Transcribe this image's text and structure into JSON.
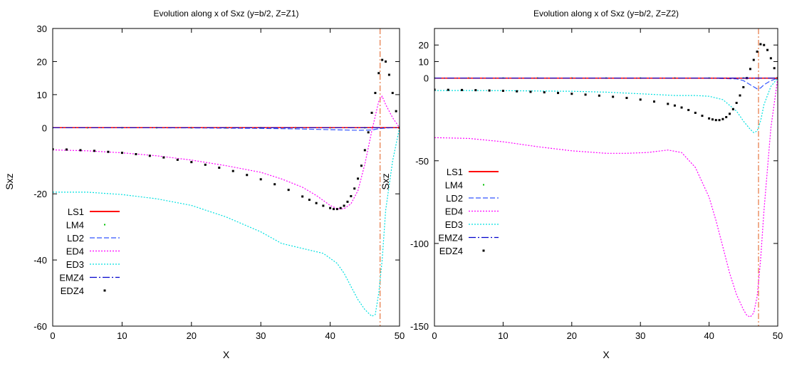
{
  "chart_data": [
    {
      "type": "line",
      "title": "Evolution along x of Sxz (y=b/2, Z=Z1)",
      "xlabel": "X",
      "ylabel": "Sxz",
      "xlim": [
        0,
        50
      ],
      "ylim": [
        -60,
        30
      ],
      "xticks": [
        0,
        10,
        20,
        30,
        40,
        50
      ],
      "yticks": [
        -60,
        -40,
        -20,
        0,
        10,
        20,
        30
      ],
      "vline_x": 47.2,
      "legend_position": "bottom-left",
      "series": [
        {
          "name": "LS1",
          "color": "#ff0000",
          "style": "solid",
          "x": [
            0,
            50
          ],
          "y": [
            0,
            0
          ]
        },
        {
          "name": "LM4",
          "color": "#00c000",
          "style": "dots",
          "x": [
            0,
            5,
            10,
            15,
            20,
            25,
            30,
            35,
            40,
            45,
            50
          ],
          "y": [
            0,
            0,
            0,
            0,
            0,
            0,
            0,
            0,
            0,
            0,
            0
          ]
        },
        {
          "name": "LD2",
          "color": "#3355ff",
          "style": "dashed",
          "x": [
            0,
            10,
            20,
            30,
            35,
            40,
            44,
            46,
            47,
            48,
            49,
            50
          ],
          "y": [
            0,
            0,
            -0.05,
            -0.2,
            -0.35,
            -0.6,
            -0.8,
            -0.7,
            -0.3,
            -0.1,
            0,
            0
          ]
        },
        {
          "name": "ED4",
          "color": "#ff00ff",
          "style": "dotted",
          "x": [
            0,
            5,
            10,
            15,
            20,
            25,
            30,
            33,
            36,
            38,
            40,
            41,
            42,
            43,
            44,
            45,
            46,
            47,
            47.5,
            48,
            49,
            50
          ],
          "y": [
            -6.7,
            -7,
            -7.6,
            -8.5,
            -9.8,
            -11.5,
            -13.5,
            -15.5,
            -18,
            -20.5,
            -23.5,
            -24.5,
            -24.5,
            -23,
            -19,
            -11,
            -1,
            8,
            9.5,
            7,
            3,
            0
          ]
        },
        {
          "name": "ED3",
          "color": "#00e0e0",
          "style": "dotted",
          "x": [
            0,
            5,
            10,
            15,
            20,
            25,
            30,
            33,
            36,
            39,
            41,
            42,
            43,
            44,
            45,
            46,
            46.5,
            47,
            47.5,
            48,
            49,
            50
          ],
          "y": [
            -19.5,
            -19.5,
            -20.2,
            -21.5,
            -23.5,
            -27,
            -31.5,
            -35,
            -36.5,
            -38,
            -41,
            -44,
            -48,
            -52,
            -55,
            -57,
            -56.5,
            -50,
            -40,
            -25,
            -10,
            0
          ]
        },
        {
          "name": "EMZ4",
          "color": "#0000cc",
          "style": "dash-dot",
          "x": [
            0,
            50
          ],
          "y": [
            0,
            0
          ]
        },
        {
          "name": "EDZ4",
          "color": "#000000",
          "style": "markers",
          "x": [
            0,
            2,
            4,
            6,
            8,
            10,
            12,
            14,
            16,
            18,
            20,
            22,
            24,
            26,
            28,
            30,
            32,
            34,
            36,
            37,
            38,
            39,
            40,
            40.5,
            41,
            41.5,
            42,
            42.5,
            43,
            43.5,
            44,
            44.5,
            45,
            45.5,
            46,
            46.5,
            47,
            47.5,
            48,
            48.5,
            49,
            49.5,
            50
          ],
          "y": [
            -6.5,
            -6.6,
            -6.8,
            -7,
            -7.3,
            -7.6,
            -8,
            -8.5,
            -9,
            -9.7,
            -10.4,
            -11.2,
            -12.1,
            -13.1,
            -14.3,
            -15.6,
            -17.1,
            -18.8,
            -20.8,
            -21.8,
            -22.8,
            -23.6,
            -24.3,
            -24.6,
            -24.6,
            -24.3,
            -23.6,
            -22.4,
            -20.7,
            -18.4,
            -15.4,
            -11.5,
            -6.8,
            -1.4,
            4.5,
            10.5,
            16.5,
            20.5,
            20,
            16,
            10.5,
            5,
            0
          ]
        }
      ]
    },
    {
      "type": "line",
      "title": "Evolution along x of Sxz (y=b/2, Z=Z2)",
      "xlabel": "X",
      "ylabel": "Sxz",
      "xlim": [
        0,
        50
      ],
      "ylim": [
        -150,
        30
      ],
      "xticks": [
        0,
        10,
        20,
        30,
        40,
        50
      ],
      "yticks": [
        -150,
        -100,
        -50,
        0,
        10,
        20
      ],
      "vline_x": 47.2,
      "legend_position": "middle-left",
      "series": [
        {
          "name": "LS1",
          "color": "#ff0000",
          "style": "solid",
          "x": [
            0,
            50
          ],
          "y": [
            0,
            0
          ]
        },
        {
          "name": "LM4",
          "color": "#00c000",
          "style": "dots",
          "x": [
            0,
            5,
            10,
            15,
            20,
            25,
            30,
            35,
            40,
            45,
            50
          ],
          "y": [
            0,
            0,
            0,
            0,
            0,
            0,
            0,
            0,
            0,
            0,
            0
          ]
        },
        {
          "name": "LD2",
          "color": "#3355ff",
          "style": "dashed",
          "x": [
            0,
            10,
            20,
            30,
            40,
            44,
            45,
            46,
            47,
            47.5,
            48,
            49,
            50
          ],
          "y": [
            0,
            0,
            0,
            0,
            0,
            -0.5,
            -1.5,
            -4,
            -6.5,
            -6,
            -4,
            -1.5,
            0
          ]
        },
        {
          "name": "ED4",
          "color": "#ff00ff",
          "style": "dotted",
          "x": [
            0,
            5,
            10,
            15,
            20,
            25,
            28,
            31,
            34,
            36,
            38,
            40,
            41,
            42,
            43,
            44,
            45,
            45.5,
            46,
            46.5,
            47,
            47.5,
            48,
            49,
            50
          ],
          "y": [
            -36,
            -36.5,
            -38.5,
            -41.5,
            -44,
            -45.5,
            -45.5,
            -45,
            -43.5,
            -45,
            -54,
            -72,
            -86,
            -102,
            -118,
            -131,
            -140,
            -143.5,
            -144.5,
            -142,
            -132,
            -110,
            -80,
            -30,
            0
          ]
        },
        {
          "name": "ED3",
          "color": "#00e0e0",
          "style": "dotted",
          "x": [
            0,
            5,
            10,
            15,
            20,
            25,
            30,
            35,
            38,
            40,
            42,
            44,
            45,
            46,
            46.5,
            47,
            47.5,
            48,
            49,
            50
          ],
          "y": [
            -7.5,
            -7.5,
            -7.6,
            -7.8,
            -8,
            -8.5,
            -9.5,
            -10.5,
            -10.5,
            -11,
            -13,
            -20,
            -26,
            -31,
            -33,
            -32,
            -26,
            -16,
            -5,
            0
          ]
        },
        {
          "name": "EMZ4",
          "color": "#0000cc",
          "style": "dash-dot",
          "x": [
            0,
            50
          ],
          "y": [
            0,
            0
          ]
        },
        {
          "name": "EDZ4",
          "color": "#000000",
          "style": "markers",
          "x": [
            0,
            2,
            4,
            6,
            8,
            10,
            12,
            14,
            16,
            18,
            20,
            22,
            24,
            26,
            28,
            30,
            32,
            34,
            35,
            36,
            37,
            38,
            39,
            40,
            40.5,
            41,
            41.5,
            42,
            42.5,
            43,
            43.5,
            44,
            44.5,
            45,
            45.5,
            46,
            46.5,
            47,
            47.5,
            48,
            48.5,
            49,
            49.5,
            50
          ],
          "y": [
            -7,
            -7.1,
            -7.2,
            -7.3,
            -7.5,
            -7.7,
            -8,
            -8.3,
            -8.6,
            -9,
            -9.5,
            -10,
            -10.6,
            -11.3,
            -12,
            -13,
            -14.2,
            -15.6,
            -16.6,
            -17.8,
            -19.3,
            -21,
            -22.8,
            -24.4,
            -25,
            -25.4,
            -25.4,
            -24.8,
            -23.6,
            -21.6,
            -18.8,
            -15,
            -10.5,
            -5.5,
            0,
            5.5,
            11,
            16,
            20.5,
            20,
            17,
            12,
            6,
            0
          ]
        }
      ]
    }
  ]
}
